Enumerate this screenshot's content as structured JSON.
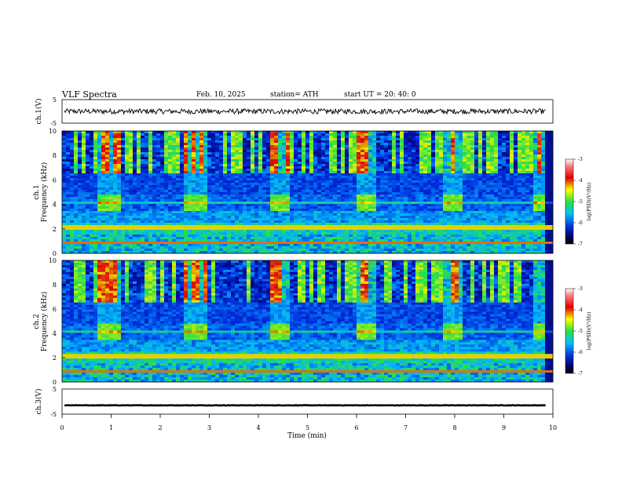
{
  "header": {
    "title": "VLF  Spectra",
    "date": "Feb. 10, 2025",
    "station": "station= ATH",
    "start": "start  UT  =   20: 40: 0"
  },
  "chart_data": [
    {
      "type": "line",
      "panel": "ch1-waveform",
      "ylabel": "ch.1(V)",
      "ylim": [
        -5,
        5
      ],
      "yticks": [
        "5",
        "-5"
      ],
      "xlim": [
        0,
        10
      ],
      "level": 0.0,
      "color": "#000000"
    },
    {
      "type": "heatmap",
      "panel": "ch1-spectrogram",
      "ylabel_line1": "ch.1",
      "ylabel_line2": "Frequency  (kHz)",
      "ylim": [
        0,
        10
      ],
      "yticks": [
        "0",
        "2",
        "4",
        "6",
        "8",
        "10"
      ],
      "xlim": [
        0,
        10
      ],
      "bursts_min": [
        [
          0.75,
          1.2
        ],
        [
          2.5,
          2.95
        ],
        [
          4.25,
          4.65
        ],
        [
          6.0,
          6.4
        ],
        [
          7.8,
          8.15
        ],
        [
          9.6,
          9.85
        ]
      ],
      "colorbar": {
        "label": "log(PSD)(V²/Hz)",
        "ticks": [
          "-3",
          "-4",
          "-5",
          "-6",
          "-7"
        ],
        "range": [
          -7,
          -3
        ]
      }
    },
    {
      "type": "heatmap",
      "panel": "ch2-spectrogram",
      "ylabel_line1": "ch.2",
      "ylabel_line2": "Frequency  (kHz)",
      "ylim": [
        0,
        10
      ],
      "yticks": [
        "0",
        "2",
        "4",
        "6",
        "8",
        "10"
      ],
      "xlim": [
        0,
        10
      ],
      "bursts_min": [
        [
          0.75,
          1.2
        ],
        [
          2.5,
          2.95
        ],
        [
          4.25,
          4.65
        ],
        [
          6.0,
          6.4
        ],
        [
          7.8,
          8.15
        ],
        [
          9.6,
          9.85
        ]
      ],
      "colorbar": {
        "label": "log(PSD)(V²/Hz)",
        "ticks": [
          "-3",
          "-4",
          "-5",
          "-6",
          "-7"
        ],
        "range": [
          -7,
          -3
        ]
      }
    },
    {
      "type": "line",
      "panel": "ch3-waveform",
      "ylabel": "ch.3(V)",
      "ylim": [
        -5,
        5
      ],
      "yticks": [
        "5",
        "-5"
      ],
      "xlim": [
        0,
        10
      ],
      "level": -1.5,
      "color": "#000000"
    }
  ],
  "xaxis": {
    "label": "Time  (min)",
    "ticks": [
      "0",
      "1",
      "2",
      "3",
      "4",
      "5",
      "6",
      "7",
      "8",
      "9",
      "10"
    ]
  }
}
